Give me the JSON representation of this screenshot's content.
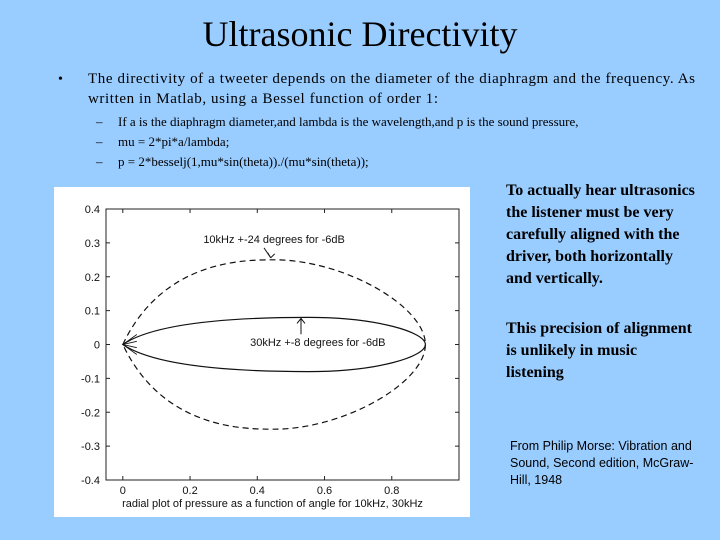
{
  "slide": {
    "title": "Ultrasonic Directivity",
    "bullet_marker": "•",
    "bullet_text": "The directivity of a tweeter depends on the diameter of the diaphragm and the frequency. As written in Matlab, using a Bessel function of order 1:",
    "sub_marker": "–",
    "sub_items": [
      "If a is the diaphragm diameter,and lambda is the wavelength,and p is the sound pressure,",
      "mu = 2*pi*a/lambda;",
      "p = 2*besselj(1,mu*sin(theta))./(mu*sin(theta));"
    ],
    "side_text_1": "To actually hear ultrasonics the listener must be very carefully aligned with the driver, both horizontally and vertically.",
    "side_text_2": "This precision of alignment is unlikely in music listening",
    "citation": "From Philip Morse: Vibration and Sound, Second edition, McGraw-Hill, 1948"
  },
  "chart_data": {
    "type": "line",
    "xlabel": "radial plot of pressure as a function of angle for 10kHz, 30kHz",
    "ylabel": "",
    "xlim": [
      -0.05,
      1.0
    ],
    "ylim": [
      -0.4,
      0.4
    ],
    "x_ticks": [
      "0",
      "0.2",
      "0.4",
      "0.6",
      "0.8"
    ],
    "y_ticks": [
      "0.4",
      "0.3",
      "0.2",
      "0.1",
      "0",
      "-0.1",
      "-0.2",
      "-0.3",
      "-0.4"
    ],
    "series": [
      {
        "line": "dashed",
        "half_angle_deg": 24,
        "peak_y": 0.25,
        "peak_x": 0.45
      },
      {
        "line": "solid",
        "half_angle_deg": 8,
        "peak_y": 0.08,
        "peak_x": 0.55
      }
    ],
    "annotations": [
      {
        "text": "10kHz +-24 degrees for -6dB",
        "x": 0.45,
        "y": 0.3
      },
      {
        "text": "30kHz +-8 degrees for -6dB",
        "x": 0.58,
        "y": -0.005
      }
    ],
    "grid": false
  }
}
